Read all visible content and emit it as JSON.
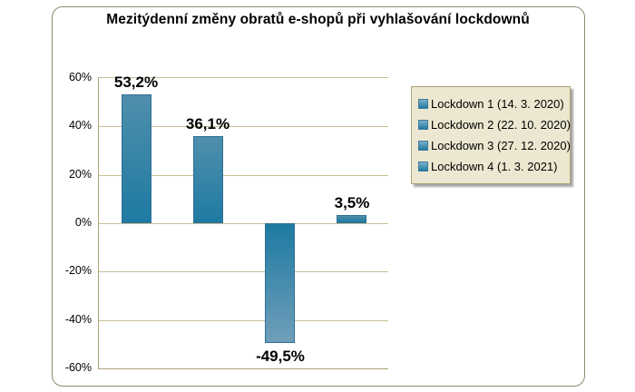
{
  "chart_data": {
    "type": "bar",
    "title": "Mezitýdenní změny obratů e-shopů při vyhlašování lockdownů",
    "categories": [
      "Lockdown 1 (14. 3. 2020)",
      "Lockdown 2 (22. 10. 2020)",
      "Lockdown 3 (27. 12. 2020)",
      "Lockdown 4 (1. 3. 2021)"
    ],
    "values": [
      53.2,
      36.1,
      -49.5,
      3.5
    ],
    "value_labels": [
      "53,2%",
      "36,1%",
      "-49,5%",
      "3,5%"
    ],
    "y_tick_labels": [
      "60%",
      "40%",
      "20%",
      "0%",
      "-20%",
      "-40%",
      "-60%"
    ],
    "ylim": [
      -60,
      60
    ],
    "y_step": 20,
    "grid": true,
    "legend_position": "right",
    "xlabel": "",
    "ylabel": "",
    "colors": {
      "bar_top": "#4f8fac",
      "bar_bottom": "#1e7aa2",
      "neg_bottom": "#6f9eb9",
      "gridline": "#c9bf96",
      "axis": "#aca279",
      "legend_bg": "#ece7d0",
      "legend_border": "#aba175",
      "outer_border": "#8f8871"
    }
  }
}
